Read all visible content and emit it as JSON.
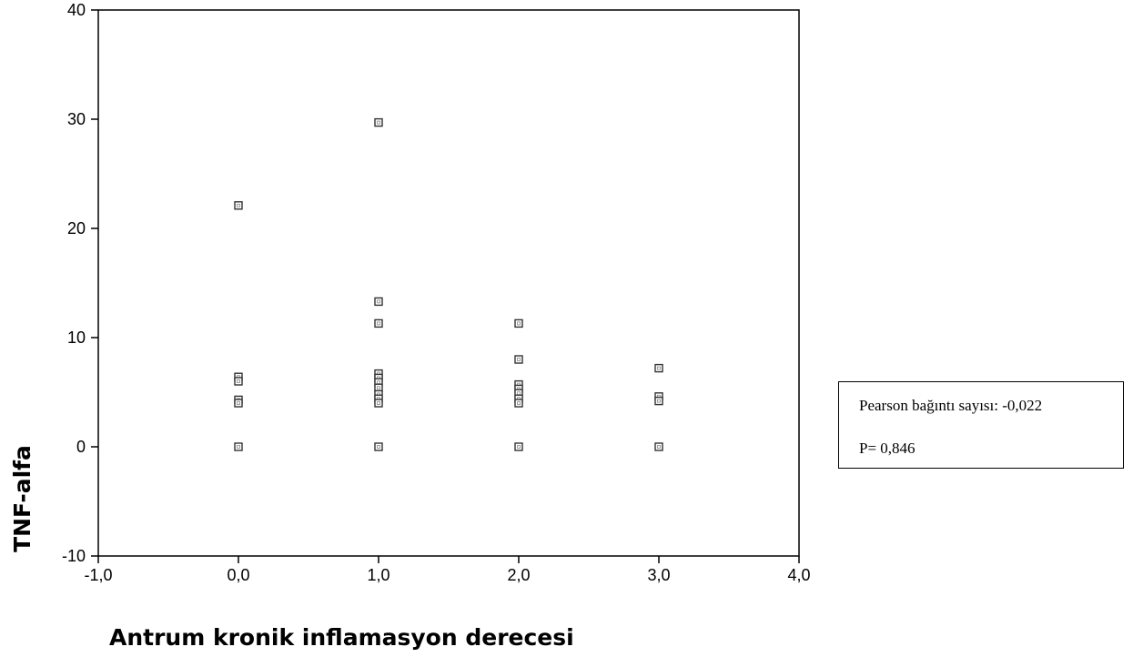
{
  "chart_data": {
    "type": "scatter",
    "title": "",
    "xlabel": "Antrum kronik inflamasyon derecesi",
    "ylabel": "TNF-alfa",
    "xlim": [
      -1.0,
      4.0
    ],
    "ylim": [
      -10,
      40
    ],
    "x_ticks": [
      "-1,0",
      "0,0",
      "1,0",
      "2,0",
      "3,0",
      "4,0"
    ],
    "x_tick_values": [
      -1,
      0,
      1,
      2,
      3,
      4
    ],
    "y_ticks": [
      "-10",
      "0",
      "10",
      "20",
      "30",
      "40"
    ],
    "y_tick_values": [
      -10,
      0,
      10,
      20,
      30,
      40
    ],
    "grid": false,
    "marker": "square-hollow",
    "points": [
      {
        "x": 0,
        "y": 22.1
      },
      {
        "x": 0,
        "y": 6.4
      },
      {
        "x": 0,
        "y": 6.0
      },
      {
        "x": 0,
        "y": 4.3
      },
      {
        "x": 0,
        "y": 4.0
      },
      {
        "x": 0,
        "y": 0.0
      },
      {
        "x": 1,
        "y": 29.7
      },
      {
        "x": 1,
        "y": 13.3
      },
      {
        "x": 1,
        "y": 11.3
      },
      {
        "x": 1,
        "y": 6.7
      },
      {
        "x": 1,
        "y": 6.3
      },
      {
        "x": 1,
        "y": 5.9
      },
      {
        "x": 1,
        "y": 5.4
      },
      {
        "x": 1,
        "y": 4.8
      },
      {
        "x": 1,
        "y": 4.4
      },
      {
        "x": 1,
        "y": 4.0
      },
      {
        "x": 1,
        "y": 0.0
      },
      {
        "x": 2,
        "y": 11.3
      },
      {
        "x": 2,
        "y": 8.0
      },
      {
        "x": 2,
        "y": 5.7
      },
      {
        "x": 2,
        "y": 5.3
      },
      {
        "x": 2,
        "y": 4.9
      },
      {
        "x": 2,
        "y": 4.4
      },
      {
        "x": 2,
        "y": 4.0
      },
      {
        "x": 2,
        "y": 0.0
      },
      {
        "x": 3,
        "y": 7.2
      },
      {
        "x": 3,
        "y": 4.6
      },
      {
        "x": 3,
        "y": 4.2
      },
      {
        "x": 3,
        "y": 0.0
      }
    ]
  },
  "stats": {
    "pearson_label": "Pearson bağıntı sayısı: -0,022",
    "p_label": "P= 0,846"
  }
}
